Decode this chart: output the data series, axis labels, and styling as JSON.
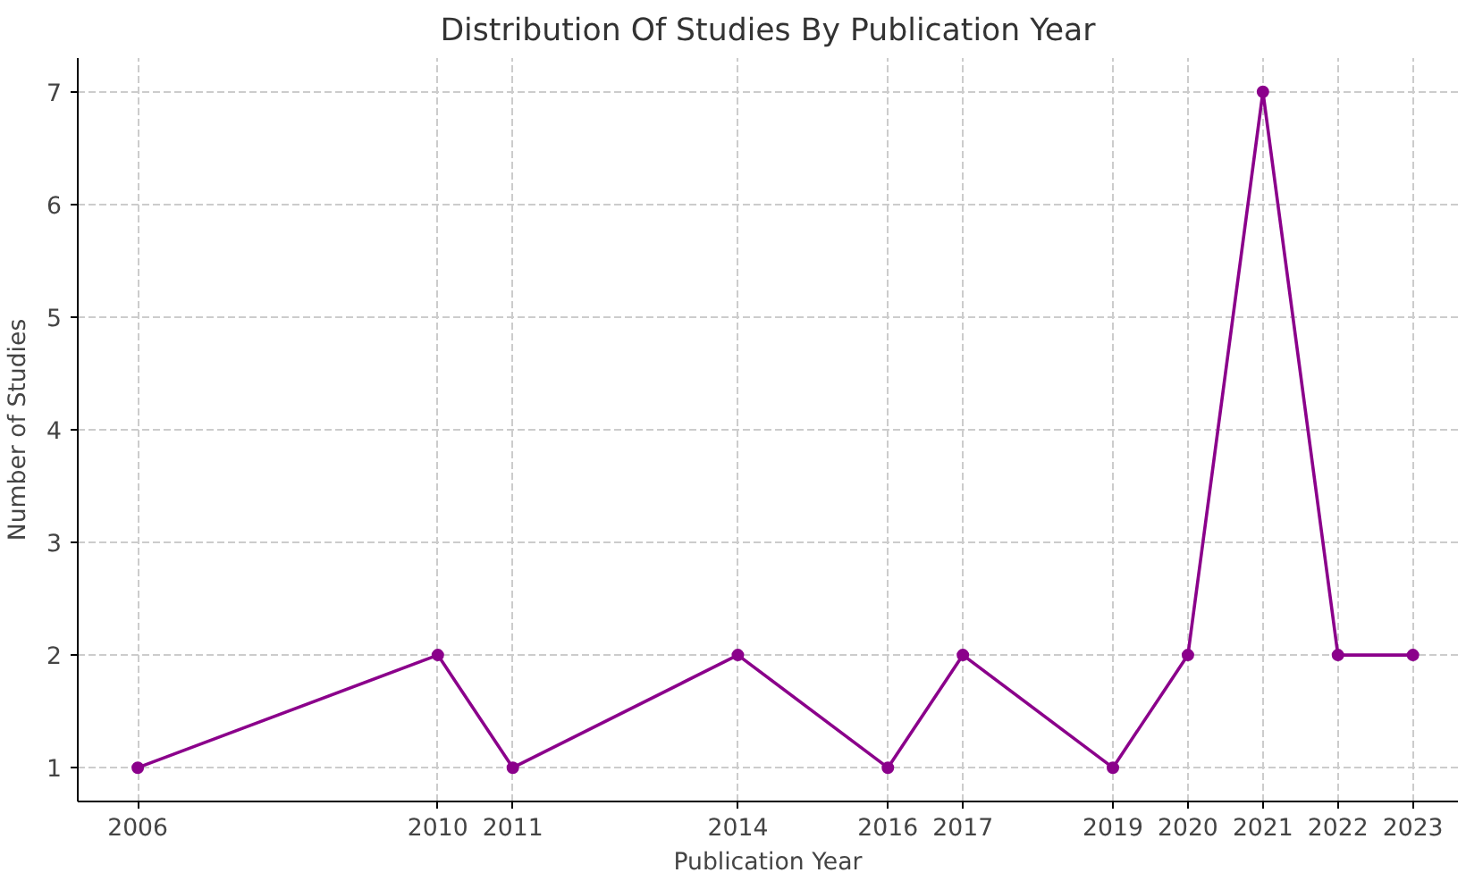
{
  "chart_data": {
    "type": "line",
    "title": "Distribution Of Studies By Publication Year",
    "xlabel": "Publication Year",
    "ylabel": "Number of Studies",
    "x": [
      2006,
      2010,
      2011,
      2014,
      2016,
      2017,
      2019,
      2020,
      2021,
      2022,
      2023
    ],
    "series": [
      {
        "color": "#8b008b",
        "values": [
          1,
          2,
          1,
          2,
          1,
          2,
          1,
          2,
          7,
          2,
          2
        ]
      }
    ],
    "xlim": [
      2005.2,
      2023.6
    ],
    "xticks": [
      2006,
      2010,
      2011,
      2014,
      2016,
      2017,
      2019,
      2020,
      2021,
      2022,
      2023
    ],
    "ylim": [
      0.7,
      7.3
    ],
    "yticks": [
      1,
      2,
      3,
      4,
      5,
      6,
      7
    ],
    "grid": true,
    "marker": "circle",
    "line_style": "solid"
  }
}
